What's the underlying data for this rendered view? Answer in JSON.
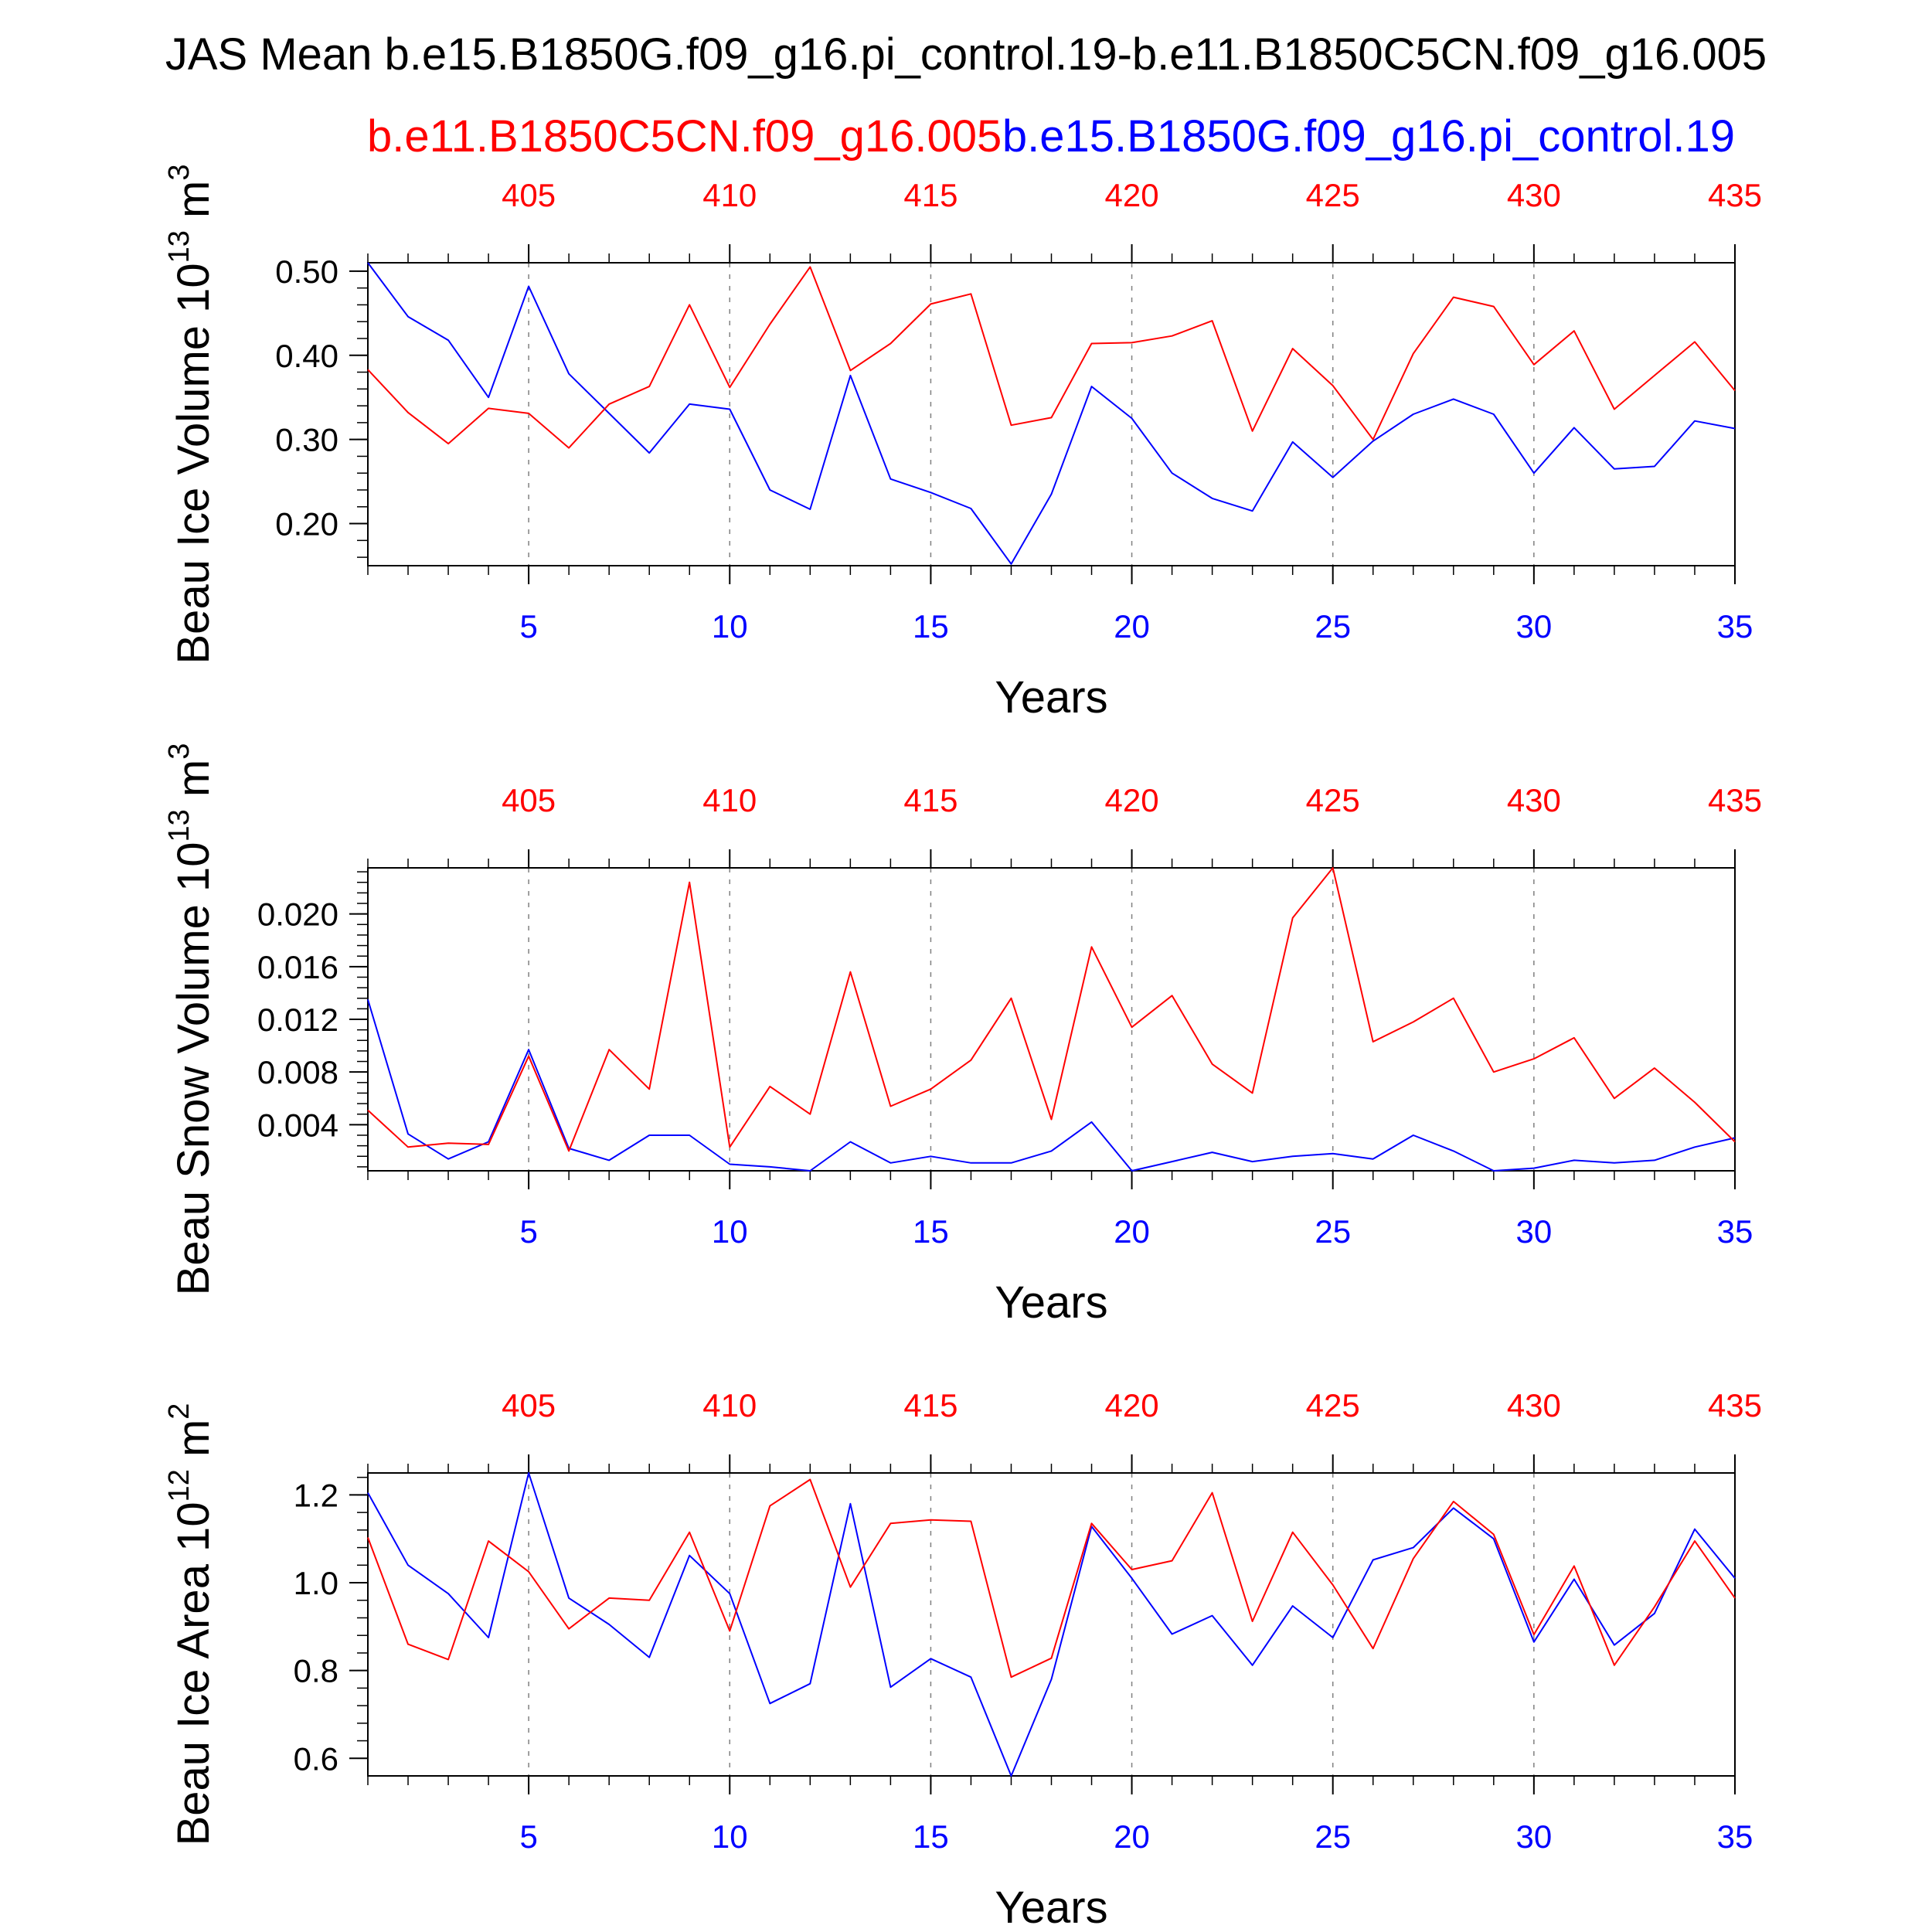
{
  "title": "JAS Mean b.e15.B1850G.f09_g16.pi_control.19-b.e11.B1850C5CN.f09_g16.005",
  "legend": {
    "case2_name": "b.e11.B1850C5CN.f09_g16.005",
    "case1_name": "b.e15.B1850G.f09_g16.pi_control.19"
  },
  "colors": {
    "case1": "#0000ff",
    "case2": "#ff0000",
    "axis": "#000000",
    "grid": "#808080"
  },
  "chart_data": [
    {
      "type": "line",
      "ylabel": "Beau Ice Volume 10",
      "ylabel_exp": "13",
      "ylabel_unit": " m",
      "ylabel_unit_exp": "3",
      "xlabel": "Years",
      "xlim": [
        1,
        35
      ],
      "ylim": [
        0.15,
        0.51
      ],
      "yticks": [
        0.2,
        0.3,
        0.4,
        0.5
      ],
      "ytick_labels": [
        "0.20",
        "0.30",
        "0.40",
        "0.50"
      ],
      "yminor_step": 0.02,
      "xticks": [
        5,
        10,
        15,
        20,
        25,
        30,
        35
      ],
      "xtick_labels": [
        "5",
        "10",
        "15",
        "20",
        "25",
        "30",
        "35"
      ],
      "top_xticks": [
        5,
        10,
        15,
        20,
        25,
        30,
        35
      ],
      "top_xtick_labels": [
        "405",
        "410",
        "415",
        "420",
        "425",
        "430",
        "435"
      ],
      "grid": "vertical dashed",
      "series": [
        {
          "name": "b.e15.B1850G.f09_g16.pi_control.19",
          "color": "#0000ff",
          "x": [
            1,
            2,
            3,
            4,
            5,
            6,
            7,
            8,
            9,
            10,
            11,
            12,
            13,
            14,
            15,
            16,
            17,
            18,
            19,
            20,
            21,
            22,
            23,
            24,
            25,
            26,
            27,
            28,
            29,
            30,
            31,
            32,
            33,
            34,
            35
          ],
          "y": [
            0.51,
            0.446,
            0.418,
            0.35,
            0.482,
            0.378,
            0.331,
            0.284,
            0.342,
            0.336,
            0.24,
            0.217,
            0.376,
            0.253,
            0.237,
            0.218,
            0.152,
            0.235,
            0.363,
            0.325,
            0.26,
            0.23,
            0.215,
            0.297,
            0.255,
            0.298,
            0.33,
            0.348,
            0.33,
            0.26,
            0.314,
            0.265,
            0.268,
            0.322,
            0.313
          ]
        },
        {
          "name": "b.e11.B1850C5CN.f09_g16.005",
          "color": "#ff0000",
          "x": [
            1,
            2,
            3,
            4,
            5,
            6,
            7,
            8,
            9,
            10,
            11,
            12,
            13,
            14,
            15,
            16,
            17,
            18,
            19,
            20,
            21,
            22,
            23,
            24,
            25,
            26,
            27,
            28,
            29,
            30,
            31,
            32,
            33,
            34,
            35
          ],
          "y": [
            0.383,
            0.332,
            0.295,
            0.337,
            0.331,
            0.29,
            0.342,
            0.363,
            0.46,
            0.362,
            0.437,
            0.505,
            0.382,
            0.414,
            0.461,
            0.473,
            0.317,
            0.326,
            0.414,
            0.415,
            0.423,
            0.441,
            0.31,
            0.408,
            0.364,
            0.3,
            0.402,
            0.469,
            0.458,
            0.389,
            0.429,
            0.336,
            0.376,
            0.416,
            0.358
          ]
        }
      ]
    },
    {
      "type": "line",
      "ylabel": "Beau Snow Volume 10",
      "ylabel_exp": "13",
      "ylabel_unit": " m",
      "ylabel_unit_exp": "3",
      "xlabel": "Years",
      "xlim": [
        1,
        35
      ],
      "ylim": [
        0.0005,
        0.0235
      ],
      "yticks": [
        0.004,
        0.008,
        0.012,
        0.016,
        0.02
      ],
      "ytick_labels": [
        "0.004",
        "0.008",
        "0.012",
        "0.016",
        "0.020"
      ],
      "yminor_step": 0.0008,
      "xticks": [
        5,
        10,
        15,
        20,
        25,
        30,
        35
      ],
      "xtick_labels": [
        "5",
        "10",
        "15",
        "20",
        "25",
        "30",
        "35"
      ],
      "top_xticks": [
        5,
        10,
        15,
        20,
        25,
        30,
        35
      ],
      "top_xtick_labels": [
        "405",
        "410",
        "415",
        "420",
        "425",
        "430",
        "435"
      ],
      "grid": "vertical dashed",
      "series": [
        {
          "name": "b.e15.B1850G.f09_g16.pi_control.19",
          "color": "#0000ff",
          "x": [
            1,
            2,
            3,
            4,
            5,
            6,
            7,
            8,
            9,
            10,
            11,
            12,
            13,
            14,
            15,
            16,
            17,
            18,
            19,
            20,
            21,
            22,
            23,
            24,
            25,
            26,
            27,
            28,
            29,
            30,
            31,
            32,
            33,
            34,
            35
          ],
          "y": [
            0.0135,
            0.0033,
            0.0014,
            0.0027,
            0.0097,
            0.0022,
            0.0013,
            0.0032,
            0.0032,
            0.001,
            0.0008,
            0.0005,
            0.0027,
            0.0011,
            0.0016,
            0.0011,
            0.0011,
            0.002,
            0.0042,
            0.0005,
            0.0012,
            0.0019,
            0.0012,
            0.0016,
            0.0018,
            0.0014,
            0.0032,
            0.002,
            0.0005,
            0.0007,
            0.0013,
            0.0011,
            0.0013,
            0.0023,
            0.003
          ]
        },
        {
          "name": "b.e11.B1850C5CN.f09_g16.005",
          "color": "#ff0000",
          "x": [
            1,
            2,
            3,
            4,
            5,
            6,
            7,
            8,
            9,
            10,
            11,
            12,
            13,
            14,
            15,
            16,
            17,
            18,
            19,
            20,
            21,
            22,
            23,
            24,
            25,
            26,
            27,
            28,
            29,
            30,
            31,
            32,
            33,
            34,
            35
          ],
          "y": [
            0.0051,
            0.0023,
            0.0026,
            0.0025,
            0.0092,
            0.002,
            0.0097,
            0.0067,
            0.0224,
            0.0023,
            0.0069,
            0.0048,
            0.0156,
            0.0054,
            0.0067,
            0.0089,
            0.0136,
            0.0044,
            0.0175,
            0.0114,
            0.0138,
            0.0086,
            0.0064,
            0.0197,
            0.0235,
            0.0103,
            0.0118,
            0.0136,
            0.008,
            0.009,
            0.0106,
            0.006,
            0.0083,
            0.0057,
            0.0027
          ]
        }
      ]
    },
    {
      "type": "line",
      "ylabel": "Beau Ice Area 10",
      "ylabel_exp": "12",
      "ylabel_unit": " m",
      "ylabel_unit_exp": "2",
      "xlabel": "Years",
      "xlim": [
        1,
        35
      ],
      "ylim": [
        0.56,
        1.25
      ],
      "yticks": [
        0.6,
        0.8,
        1.0,
        1.2
      ],
      "ytick_labels": [
        "0.6",
        "0.8",
        "1.0",
        "1.2"
      ],
      "yminor_step": 0.04,
      "xticks": [
        5,
        10,
        15,
        20,
        25,
        30,
        35
      ],
      "xtick_labels": [
        "5",
        "10",
        "15",
        "20",
        "25",
        "30",
        "35"
      ],
      "top_xticks": [
        5,
        10,
        15,
        20,
        25,
        30,
        35
      ],
      "top_xtick_labels": [
        "405",
        "410",
        "415",
        "420",
        "425",
        "430",
        "435"
      ],
      "grid": "vertical dashed",
      "series": [
        {
          "name": "b.e15.B1850G.f09_g16.pi_control.19",
          "color": "#0000ff",
          "x": [
            1,
            2,
            3,
            4,
            5,
            6,
            7,
            8,
            9,
            10,
            11,
            12,
            13,
            14,
            15,
            16,
            17,
            18,
            19,
            20,
            21,
            22,
            23,
            24,
            25,
            26,
            27,
            28,
            29,
            30,
            31,
            32,
            33,
            34,
            35
          ],
          "y": [
            1.205,
            1.04,
            0.975,
            0.875,
            1.25,
            0.965,
            0.905,
            0.83,
            1.062,
            0.975,
            0.725,
            0.77,
            1.18,
            0.762,
            0.827,
            0.785,
            0.56,
            0.78,
            1.128,
            1.01,
            0.883,
            0.925,
            0.812,
            0.947,
            0.875,
            1.052,
            1.08,
            1.17,
            1.1,
            0.865,
            1.008,
            0.858,
            0.93,
            1.122,
            1.01
          ]
        },
        {
          "name": "b.e11.B1850C5CN.f09_g16.005",
          "color": "#ff0000",
          "x": [
            1,
            2,
            3,
            4,
            5,
            6,
            7,
            8,
            9,
            10,
            11,
            12,
            13,
            14,
            15,
            16,
            17,
            18,
            19,
            20,
            21,
            22,
            23,
            24,
            25,
            26,
            27,
            28,
            29,
            30,
            31,
            32,
            33,
            34,
            35
          ],
          "y": [
            1.103,
            0.86,
            0.825,
            1.095,
            1.025,
            0.895,
            0.965,
            0.96,
            1.115,
            0.89,
            1.175,
            1.235,
            0.99,
            1.135,
            1.143,
            1.14,
            0.785,
            0.828,
            1.135,
            1.03,
            1.05,
            1.205,
            0.912,
            1.115,
            0.995,
            0.85,
            1.055,
            1.185,
            1.11,
            0.882,
            1.038,
            0.812,
            0.945,
            1.095,
            0.965
          ]
        }
      ]
    }
  ]
}
